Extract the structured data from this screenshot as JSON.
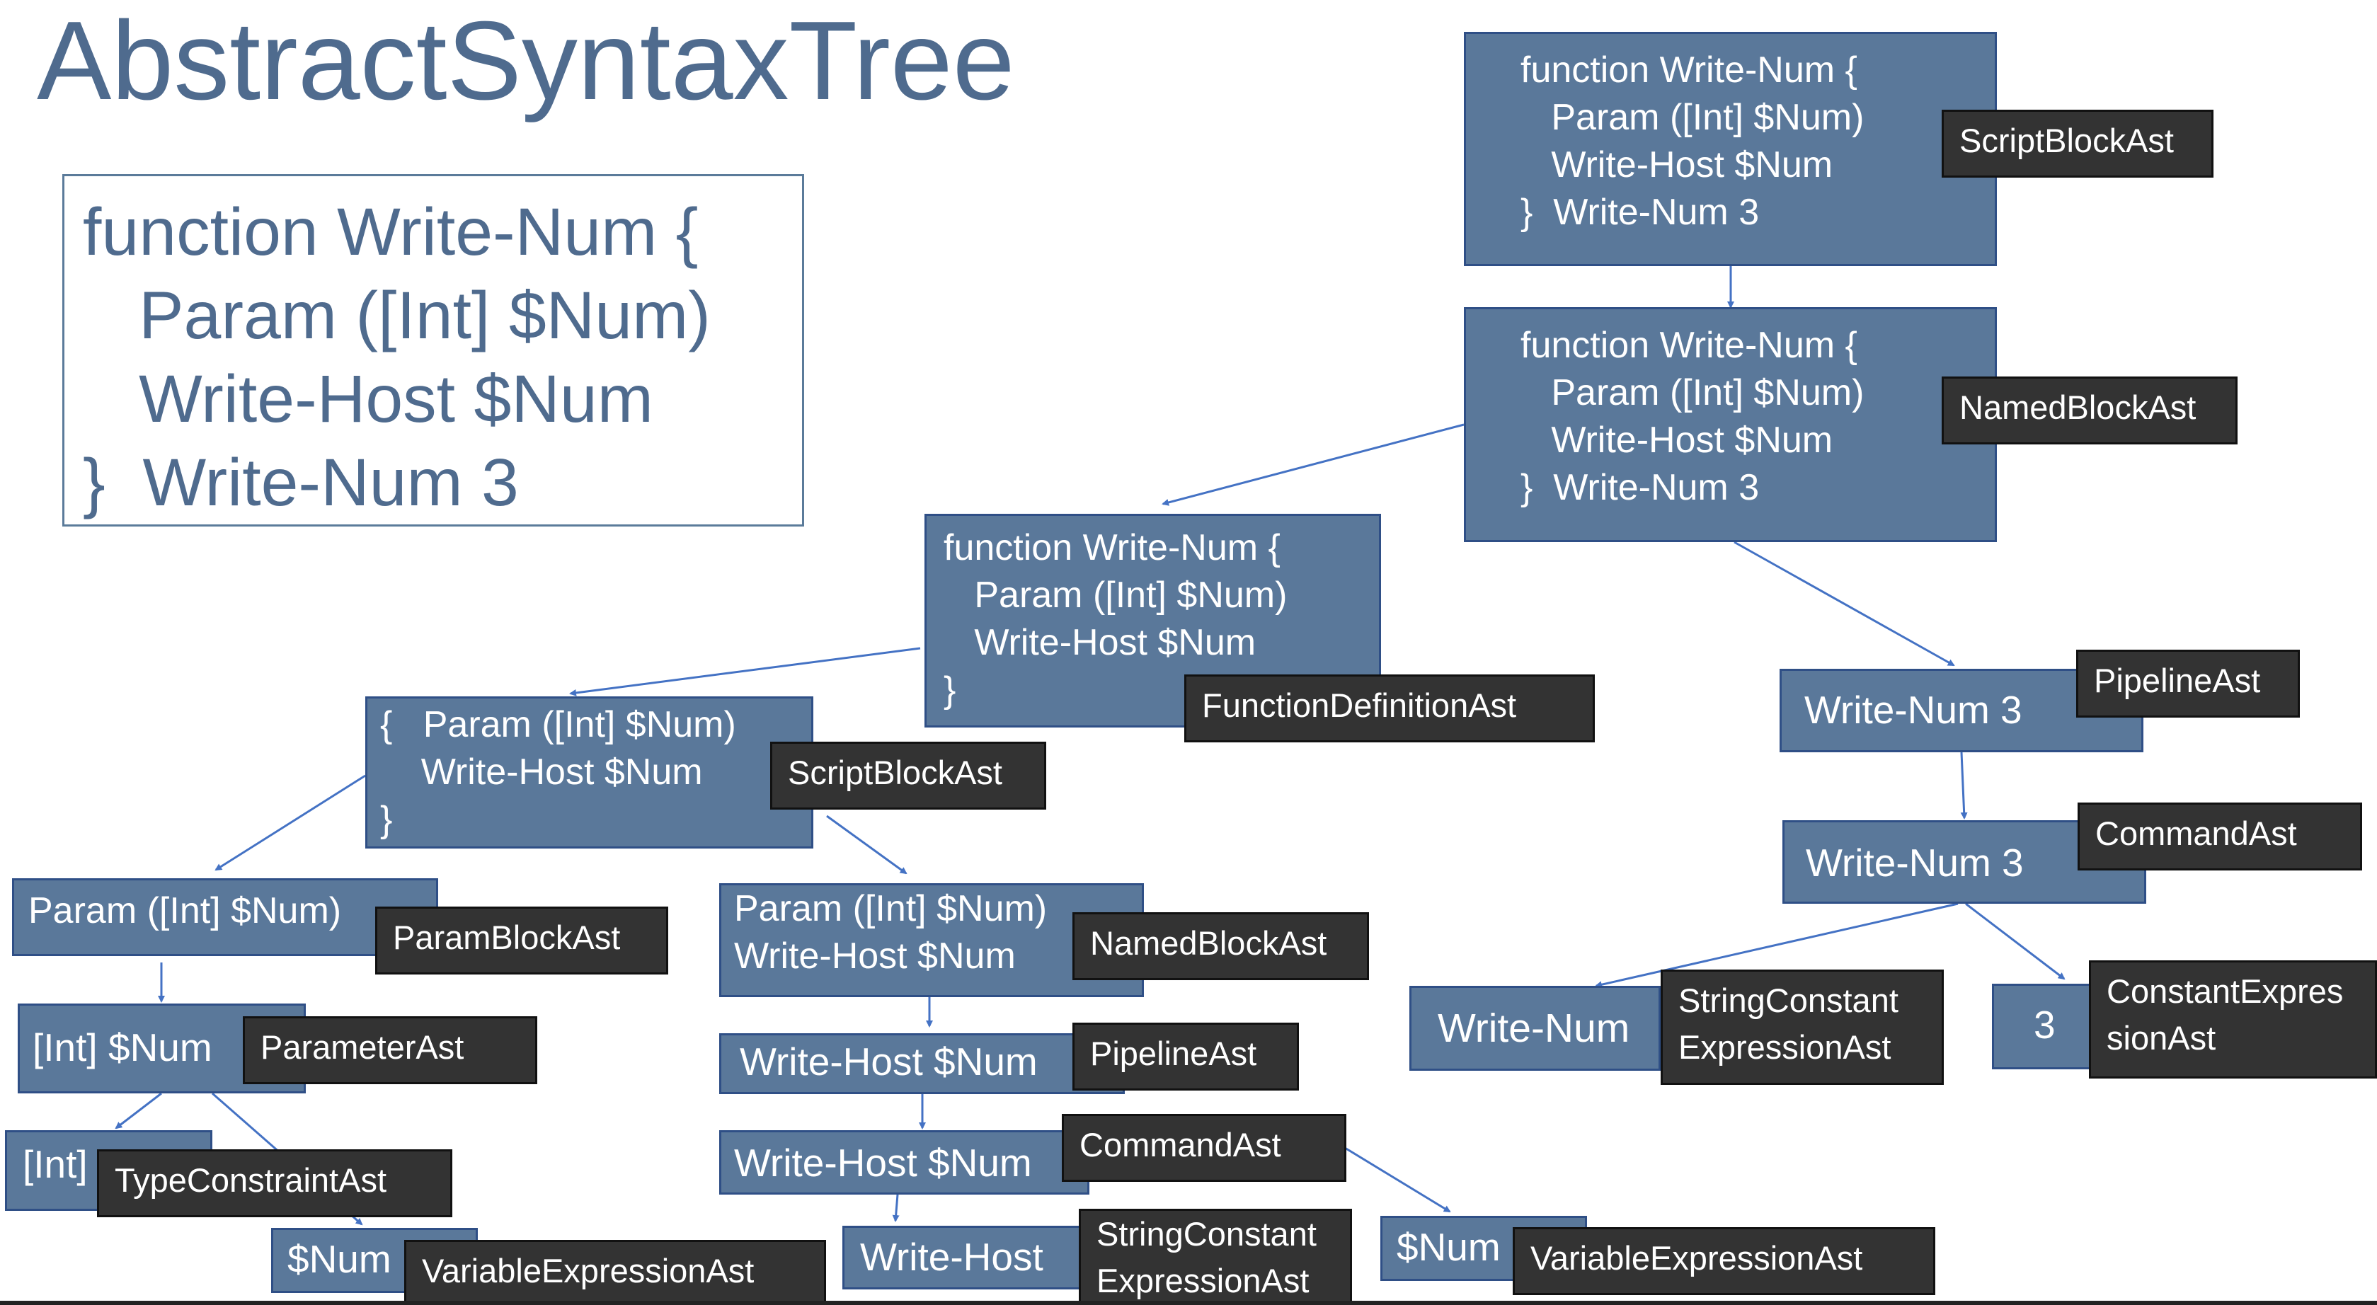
{
  "title": "AbstractSyntaxTree",
  "source_code": "function Write-Num {\n   Param ([Int] $Num)\n   Write-Host $Num\n}  Write-Num 3",
  "nodes": {
    "root": {
      "text": "function Write-Num {\n   Param ([Int] $Num)\n   Write-Host $Num\n}  Write-Num 3",
      "label": "ScriptBlockAst"
    },
    "named_block": {
      "text": "function Write-Num {\n   Param ([Int] $Num)\n   Write-Host $Num\n}  Write-Num 3",
      "label": "NamedBlockAst"
    },
    "function_def": {
      "text": "function Write-Num {\n   Param ([Int] $Num)\n   Write-Host $Num\n}",
      "label": "FunctionDefinitionAst"
    },
    "pipeline_right": {
      "text": "Write-Num 3",
      "label": "PipelineAst"
    },
    "command_right": {
      "text": "Write-Num 3",
      "label": "CommandAst"
    },
    "string_const_right": {
      "text": "Write-Num",
      "label": "StringConstant\nExpressionAst"
    },
    "constant_expr": {
      "text": "3",
      "label": "ConstantExpres\nsionAst"
    },
    "script_block_inner": {
      "text": "{   Param ([Int] $Num)\n    Write-Host $Num\n}",
      "label": "ScriptBlockAst"
    },
    "param_block": {
      "text": "Param ([Int] $Num)",
      "label": "ParamBlockAst"
    },
    "parameter": {
      "text": "[Int] $Num",
      "label": "ParameterAst"
    },
    "type_constraint": {
      "text": "[Int]",
      "label": "TypeConstraintAst"
    },
    "variable_left": {
      "text": "$Num",
      "label": "VariableExpressionAst"
    },
    "named_block_inner": {
      "text": "Param ([Int] $Num)\nWrite-Host $Num",
      "label": "NamedBlockAst"
    },
    "pipeline_inner": {
      "text": "Write-Host $Num",
      "label": "PipelineAst"
    },
    "command_inner": {
      "text": "Write-Host $Num",
      "label": "CommandAst"
    },
    "string_const_inner": {
      "text": "Write-Host",
      "label": "StringConstant\nExpressionAst"
    },
    "variable_inner": {
      "text": "$Num",
      "label": "VariableExpressionAst"
    }
  },
  "colors": {
    "title": "#4f6b8e",
    "node_fill": "#5a789a",
    "node_border": "#2f4f86",
    "label_fill": "#333333",
    "edge": "#4472c4"
  }
}
